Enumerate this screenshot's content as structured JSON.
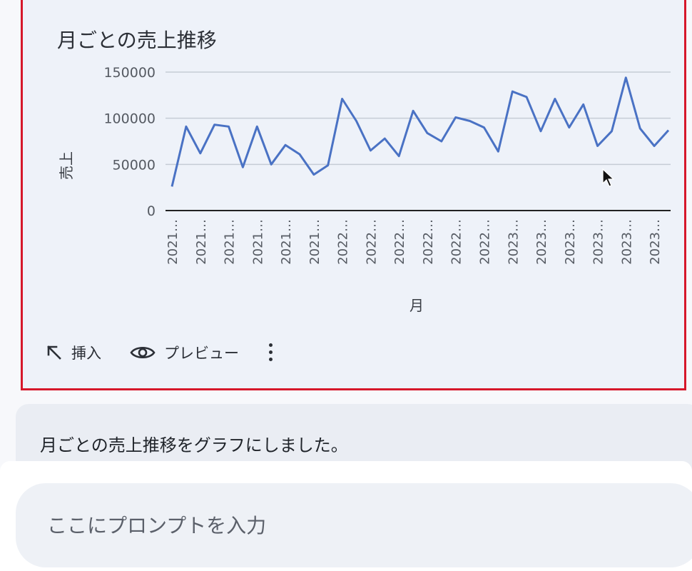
{
  "card": {
    "title": "月ごとの売上推移",
    "actions": {
      "insert_label": "挿入",
      "preview_label": "プレビュー"
    }
  },
  "chart_data": {
    "type": "line",
    "ylabel": "売上",
    "xlabel": "月",
    "yticks": [
      "150000",
      "100000",
      "50000",
      "0"
    ],
    "ylim": [
      0,
      150000
    ],
    "grid": true,
    "color": "#4a72c4",
    "x": [
      "2021…",
      "2021…",
      "2021…",
      "2021…",
      "2021…",
      "2021…",
      "2021…",
      "2021…",
      "2021…",
      "2021…",
      "2021…",
      "2021…",
      "2022…",
      "2022…",
      "2022…",
      "2022…",
      "2022…",
      "2022…",
      "2022…",
      "2022…",
      "2022…",
      "2022…",
      "2022…",
      "2022…",
      "2023…",
      "2023…",
      "2023…",
      "2023…",
      "2023…",
      "2023…",
      "2023…",
      "2023…",
      "2023…",
      "2023…",
      "2023…",
      "2023…"
    ],
    "xtick_labels": [
      "2021…",
      "2021…",
      "2021…",
      "2021…",
      "2021…",
      "2021…",
      "2022…",
      "2022…",
      "2022…",
      "2022…",
      "2022…",
      "2022…",
      "2023…",
      "2023…",
      "2023…",
      "2023…",
      "2023…",
      "2023…"
    ],
    "values": [
      26000,
      91000,
      62000,
      93000,
      91000,
      47000,
      91000,
      50000,
      71000,
      61000,
      39000,
      49000,
      121000,
      97000,
      65000,
      78000,
      59000,
      108000,
      84000,
      75000,
      101000,
      97000,
      90000,
      64000,
      129000,
      123000,
      86000,
      121000,
      90000,
      115000,
      70000,
      86000,
      144000,
      89000,
      70000,
      87000
    ]
  },
  "message": {
    "text": "月ごとの売上推移をグラフにしました。"
  },
  "prompt": {
    "placeholder": "ここにプロンプトを入力"
  }
}
